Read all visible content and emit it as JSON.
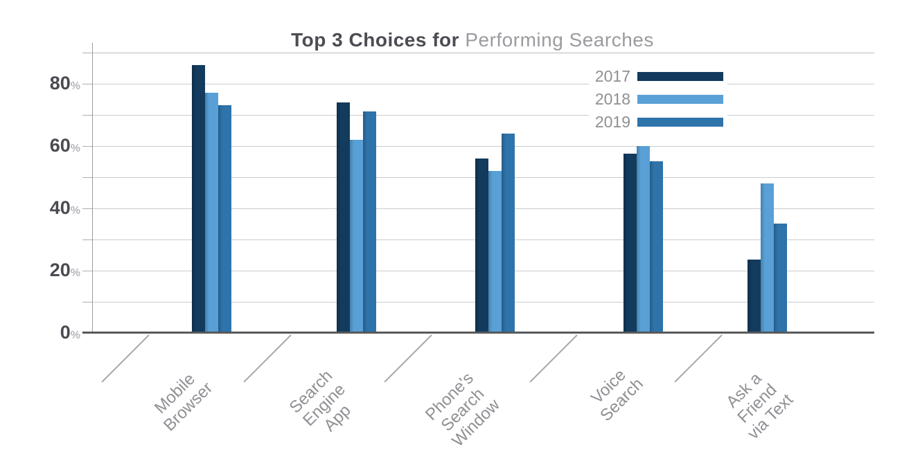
{
  "title": {
    "bold": "Top 3 Choices for",
    "regular": " Performing Searches"
  },
  "legend": {
    "position": "top-right",
    "entries": [
      "2017",
      "2018",
      "2019"
    ]
  },
  "y_axis": {
    "tick_labels": [
      "0",
      "20",
      "40",
      "60",
      "80"
    ],
    "unit": "%"
  },
  "colors": {
    "series_2017": "#123b5d",
    "series_2018": "#58a0d6",
    "series_2019": "#2e73aa",
    "title_bold": "#4c4c54",
    "title_light": "#9b9ba0",
    "axis_text": "#4a4a51",
    "muted_text": "#8f9094",
    "gridline": "#cacbcd",
    "baseline": "#58595b"
  },
  "chart_data": {
    "type": "bar",
    "title": "Top 3 Choices for Performing Searches",
    "categories": [
      "Mobile Browser",
      "Search Engine App",
      "Phone's Search Window",
      "Voice Search",
      "Ask a Friend via Text"
    ],
    "category_label_lines": [
      [
        "Mobile",
        "Browser"
      ],
      [
        "Search",
        "Engine",
        "App"
      ],
      [
        "Phone's",
        "Search",
        "Window"
      ],
      [
        "Voice",
        "Search"
      ],
      [
        "Ask a",
        "Friend",
        "via Text"
      ]
    ],
    "series": [
      {
        "name": "2017",
        "color": "#123b5d",
        "values": [
          86,
          74,
          56,
          57.5,
          23.5
        ]
      },
      {
        "name": "2018",
        "color": "#58a0d6",
        "values": [
          77,
          62,
          52,
          60,
          48
        ]
      },
      {
        "name": "2019",
        "color": "#2e73aa",
        "values": [
          73,
          71,
          64,
          55,
          35
        ]
      }
    ],
    "xlabel": "",
    "ylabel": "%",
    "ylim": [
      0,
      90
    ],
    "ytick_step_labeled": 20,
    "gridline_step": 10,
    "grid": true,
    "legend_position": "top-right"
  }
}
